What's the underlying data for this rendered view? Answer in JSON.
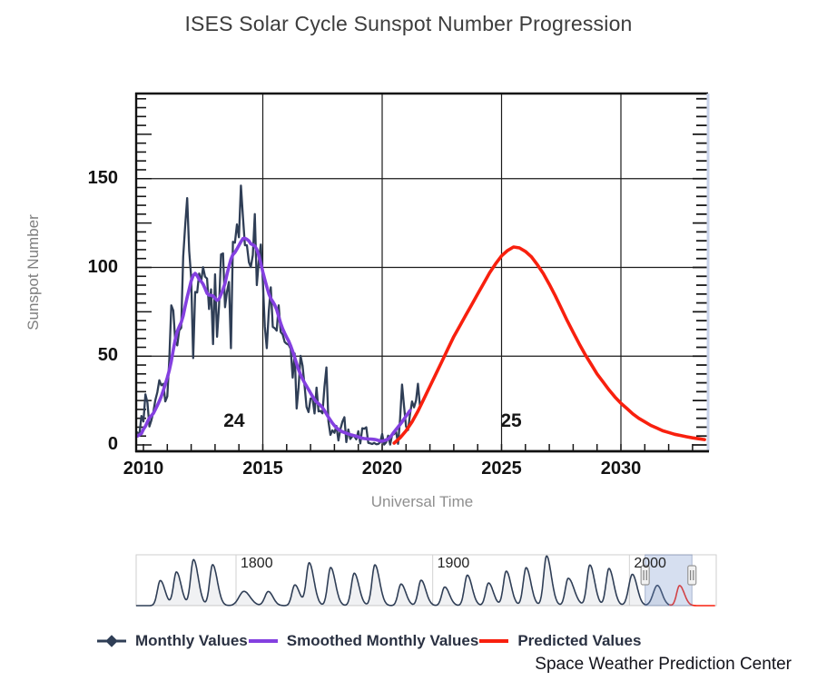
{
  "title": "ISES Solar Cycle Sunspot Number Progression",
  "credit": "Space Weather Prediction Center",
  "colors": {
    "monthly": "#2f3e56",
    "smoothed": "#8440e0",
    "predicted": "#f8200e",
    "grid": "#1a1a1a",
    "right_axis": "#c9d3ea",
    "axis_label_gray": "#8f8f8f",
    "navigator_selection": "rgba(120,148,205,0.30)"
  },
  "legend": [
    {
      "label": "Monthly Values",
      "color": "#2f3e56",
      "marker": "line-with-diamond"
    },
    {
      "label": "Smoothed Monthly Values",
      "color": "#8440e0",
      "marker": "line"
    },
    {
      "label": "Predicted Values",
      "color": "#f8200e",
      "marker": "line"
    }
  ],
  "chart_data": {
    "type": "line",
    "title": "ISES Solar Cycle Sunspot Number Progression",
    "xlabel": "Universal Time",
    "ylabel": "Sunspot Number",
    "xlim": [
      2009.7,
      2033.6
    ],
    "ylim": [
      0,
      200
    ],
    "x_ticks": [
      2010,
      2015,
      2020,
      2025,
      2030
    ],
    "y_ticks": [
      0,
      50,
      100,
      150
    ],
    "x_minor_tick_step_years": 1,
    "y_minor_tick_step": 5,
    "grid": true,
    "legend_position": "bottom",
    "cycle_labels": [
      {
        "text": "24",
        "year": 2013.8,
        "value": 13
      },
      {
        "text": "25",
        "year": 2025.4,
        "value": 13
      }
    ],
    "series": [
      {
        "name": "Monthly Values",
        "color": "#2f3e56",
        "width": 2.3,
        "start": 2009.75,
        "step_years": 0.0833333,
        "values": [
          7.0,
          6.0,
          16.3,
          13.2,
          28.5,
          24.0,
          10.4,
          13.9,
          18.8,
          25.2,
          29.6,
          36.4,
          33.6,
          34.4,
          24.5,
          27.3,
          48.3,
          78.6,
          75.7,
          58.2,
          56.1,
          64.5,
          66.0,
          106.0,
          123.6,
          139.1,
          109.3,
          94.3,
          48.9,
          86.2,
          85.9,
          96.5,
          92.0,
          100.1,
          94.8,
          93.7,
          76.5,
          87.6,
          56.8,
          96.1,
          60.9,
          78.3,
          107.3,
          107.9,
          77.6,
          86.2,
          91.8,
          54.5,
          114.4,
          113.9,
          124.2,
          117.0,
          146.1,
          128.7,
          112.5,
          112.5,
          102.9,
          100.2,
          106.9,
          130.0,
          90.0,
          103.6,
          112.9,
          93.0,
          66.7,
          54.5,
          75.3,
          88.8,
          66.5,
          65.8,
          64.4,
          78.6,
          63.6,
          62.2,
          58.0,
          57.0,
          56.4,
          54.1,
          37.9,
          51.5,
          20.5,
          32.4,
          50.2,
          44.6,
          33.4,
          21.4,
          18.5,
          26.1,
          26.4,
          17.7,
          32.3,
          18.9,
          19.2,
          17.8,
          32.6,
          43.7,
          13.2,
          5.7,
          8.2,
          6.8,
          10.7,
          2.5,
          8.9,
          13.1,
          15.6,
          1.6,
          8.7,
          3.3,
          4.9,
          4.9,
          3.1,
          7.7,
          0.8,
          9.4,
          9.1,
          9.9,
          1.2,
          0.9,
          0.5,
          1.1,
          0.4,
          0.5,
          1.5,
          6.2,
          0.2,
          1.5,
          5.2,
          0.2,
          5.8,
          6.1,
          7.5,
          0.6,
          14.4,
          34.0,
          21.8,
          10.4,
          8.4,
          17.4,
          24.5,
          21.2,
          25.0,
          34.4,
          22.2
        ]
      },
      {
        "name": "Smoothed Monthly Values",
        "color": "#8440e0",
        "width": 3.6,
        "start": 2009.75,
        "step_years": 0.0833333,
        "values": [
          5.0,
          5.7,
          6.4,
          8.8,
          10.5,
          13.0,
          15.2,
          16.5,
          17.8,
          19.9,
          22.2,
          24.6,
          27.4,
          30.7,
          34.2,
          37.9,
          42.0,
          47.2,
          53.6,
          59.4,
          64.0,
          66.6,
          69.0,
          72.8,
          78.1,
          83.2,
          87.8,
          92.4,
          95.4,
          96.6,
          95.3,
          93.2,
          92.1,
          90.6,
          88.1,
          85.4,
          84.4,
          84.3,
          83.9,
          82.6,
          81.5,
          82.2,
          84.8,
          87.6,
          91.1,
          96.0,
          100.5,
          104.6,
          107.2,
          108.5,
          110.4,
          112.4,
          114.4,
          116.2,
          116.4,
          115.8,
          114.9,
          113.3,
          112.8,
          112.0,
          110.1,
          106.8,
          102.3,
          97.5,
          93.2,
          89.1,
          85.2,
          82.5,
          80.7,
          78.9,
          76.2,
          72.4,
          68.5,
          65.4,
          62.9,
          60.6,
          58.5,
          55.8,
          52.7,
          49.3,
          45.7,
          42.4,
          39.6,
          37.2,
          35.0,
          33.1,
          31.2,
          29.2,
          27.3,
          25.6,
          24.2,
          23.2,
          22.2,
          21.0,
          19.4,
          17.5,
          15.6,
          13.9,
          12.3,
          10.9,
          9.7,
          8.7,
          8.0,
          7.4,
          7.0,
          6.6,
          6.2,
          5.8,
          5.5,
          5.2,
          4.9,
          4.5,
          4.1,
          3.8,
          3.6,
          3.5,
          3.4,
          3.3,
          3.2,
          3.1,
          2.9,
          2.6,
          2.2,
          2.1,
          2.4,
          2.8,
          3.4,
          4.4,
          5.8,
          7.3,
          8.7,
          10.1,
          11.5,
          13.0,
          14.6,
          16.2,
          17.8,
          19.4
        ]
      },
      {
        "name": "Predicted Values",
        "color": "#f8200e",
        "width": 3.6,
        "start": 2020.5,
        "step_years": 0.25,
        "values": [
          1,
          4,
          8,
          13,
          19,
          26,
          33,
          40,
          47,
          54,
          61,
          67,
          73,
          79,
          85,
          91,
          97,
          102,
          106.5,
          109.5,
          111.5,
          111,
          109,
          106,
          101.5,
          96.5,
          90.5,
          84,
          77,
          70,
          63.5,
          57,
          51,
          45.5,
          40,
          35.5,
          31,
          27,
          23.5,
          20.5,
          17.5,
          15,
          13,
          11,
          9.5,
          8,
          7,
          6,
          5.3,
          4.6,
          4,
          3.5,
          3
        ]
      }
    ]
  },
  "navigator": {
    "description": "overview of yearly sunspot numbers with range selector",
    "range": [
      1749,
      2044
    ],
    "selection": [
      2008,
      2031.8
    ],
    "decade_labels": [
      "1800",
      "1900",
      "2000"
    ],
    "decade_years": [
      1800,
      1900,
      2000
    ],
    "cycles": [
      {
        "peak_year": 1761.5,
        "peak_value": 144
      },
      {
        "peak_year": 1769.7,
        "peak_value": 193
      },
      {
        "peak_year": 1778.4,
        "peak_value": 264
      },
      {
        "peak_year": 1788.1,
        "peak_value": 235
      },
      {
        "peak_year": 1804.0,
        "peak_value": 82,
        "rise": 3.5,
        "fall": 4.5
      },
      {
        "peak_year": 1816.4,
        "peak_value": 81,
        "rise": 2.5
      },
      {
        "peak_year": 1829.9,
        "peak_value": 119
      },
      {
        "peak_year": 1837.2,
        "peak_value": 245
      },
      {
        "peak_year": 1848.1,
        "peak_value": 219
      },
      {
        "peak_year": 1860.1,
        "peak_value": 186
      },
      {
        "peak_year": 1870.6,
        "peak_value": 234
      },
      {
        "peak_year": 1883.9,
        "peak_value": 124
      },
      {
        "peak_year": 1894.1,
        "peak_value": 146
      },
      {
        "peak_year": 1906.1,
        "peak_value": 107
      },
      {
        "peak_year": 1917.6,
        "peak_value": 175
      },
      {
        "peak_year": 1928.4,
        "peak_value": 130
      },
      {
        "peak_year": 1937.4,
        "peak_value": 198
      },
      {
        "peak_year": 1947.5,
        "peak_value": 218
      },
      {
        "peak_year": 1957.9,
        "peak_value": 285
      },
      {
        "peak_year": 1968.9,
        "peak_value": 157,
        "fall": 4.2
      },
      {
        "peak_year": 1979.9,
        "peak_value": 233
      },
      {
        "peak_year": 1989.6,
        "peak_value": 213
      },
      {
        "peak_year": 2001.5,
        "peak_value": 180,
        "rise": 2.6
      },
      {
        "peak_year": 2014.2,
        "peak_value": 116,
        "rise": 3.0
      },
      {
        "peak_year": 2025.5,
        "peak_value": 115,
        "predicted": true
      }
    ]
  }
}
